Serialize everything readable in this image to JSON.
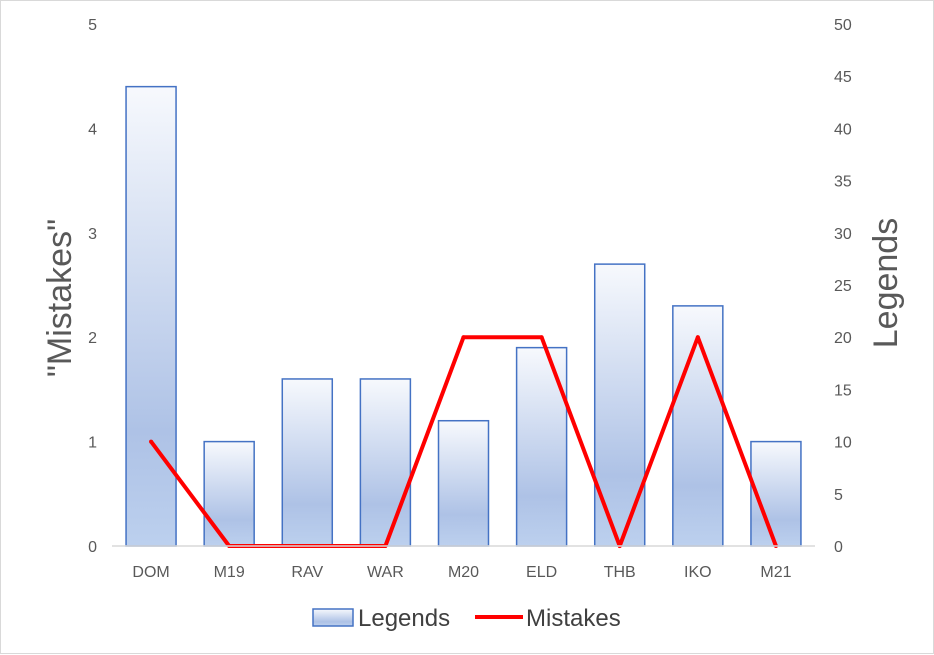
{
  "chart_data": {
    "type": "bar",
    "categories": [
      "DOM",
      "M19",
      "RAV",
      "WAR",
      "M20",
      "ELD",
      "THB",
      "IKO",
      "M21"
    ],
    "series": [
      {
        "name": "Legends",
        "kind": "bar",
        "axis": "secondary",
        "values": [
          44,
          10,
          16,
          16,
          12,
          19,
          27,
          23,
          10
        ],
        "color": "#4472c4"
      },
      {
        "name": "Mistakes",
        "kind": "line",
        "axis": "primary",
        "values": [
          1,
          0,
          0,
          0,
          2,
          2,
          0,
          2,
          0
        ],
        "color": "#ff0000"
      }
    ],
    "y_left": {
      "label": "\"Mistakes\"",
      "ylim": [
        0,
        5
      ],
      "ticks": [
        "0",
        "1",
        "2",
        "3",
        "4",
        "5"
      ]
    },
    "y_right": {
      "label": "Legends",
      "ylim": [
        0,
        50
      ],
      "ticks": [
        "0",
        "5",
        "10",
        "15",
        "20",
        "25",
        "30",
        "35",
        "40",
        "45",
        "50"
      ]
    },
    "grid": false,
    "legend": "bottom"
  }
}
